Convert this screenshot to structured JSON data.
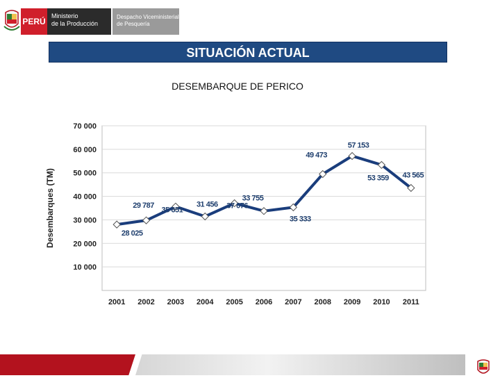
{
  "header": {
    "country": "PERÚ",
    "ministry_line1": "Ministerio",
    "ministry_line2": "de la Producción",
    "office_line1": "Despacho Viceministerial",
    "office_line2": "de Pesquería"
  },
  "title_bar": "SITUACIÓN ACTUAL",
  "colors": {
    "accent": "#1f4a82",
    "brand_red": "#d01f2b",
    "line": "#1a3d7c"
  },
  "chart_data": {
    "type": "line",
    "title": "DESEMBARQUE DE PERICO",
    "xlabel": "",
    "ylabel": "Desembarques (TM)",
    "ylim": [
      0,
      70000
    ],
    "yticks": [
      10000,
      20000,
      30000,
      40000,
      50000,
      60000,
      70000
    ],
    "ytick_labels": [
      "10 000",
      "20 000",
      "30 000",
      "40 000",
      "50 000",
      "60 000",
      "70 000"
    ],
    "categories": [
      "2001",
      "2002",
      "2003",
      "2004",
      "2005",
      "2006",
      "2007",
      "2008",
      "2009",
      "2010",
      "2011"
    ],
    "series": [
      {
        "name": "Desembarques",
        "values": [
          28025,
          29787,
          35651,
          31456,
          37076,
          33755,
          35333,
          49473,
          57153,
          53359,
          43565
        ],
        "labels": [
          "28 025",
          "29 787",
          "35 651",
          "31 456",
          "37 076",
          "33 755",
          "35 333",
          "49 473",
          "57 153",
          "53 359",
          "43 565"
        ]
      }
    ],
    "grid": true
  }
}
